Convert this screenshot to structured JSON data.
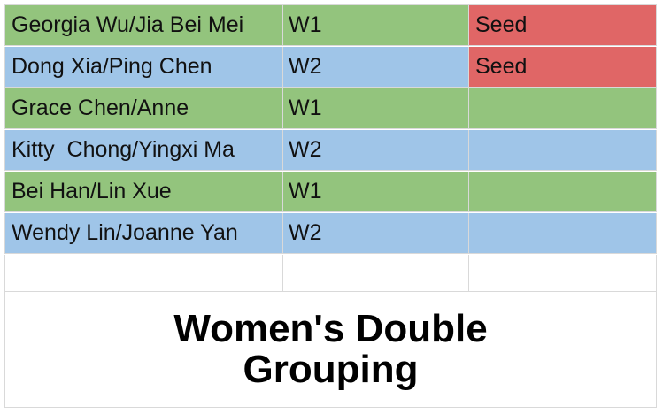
{
  "colors": {
    "w1_row": "#93c47d",
    "w2_row": "#9fc5e8",
    "seed_cell": "#e06666",
    "gridline": "#d9d9d9"
  },
  "rows": [
    {
      "pair": "Georgia Wu/Jia Bei Mei",
      "group": "W1",
      "note": "Seed"
    },
    {
      "pair": "Dong Xia/Ping Chen",
      "group": "W2",
      "note": "Seed"
    },
    {
      "pair": "Grace Chen/Anne",
      "group": "W1",
      "note": ""
    },
    {
      "pair": "Kitty  Chong/Yingxi Ma",
      "group": "W2",
      "note": ""
    },
    {
      "pair": "Bei Han/Lin Xue",
      "group": "W1",
      "note": ""
    },
    {
      "pair": "Wendy Lin/Joanne Yan",
      "group": "W2",
      "note": ""
    }
  ],
  "title": "Women's Double Grouping"
}
